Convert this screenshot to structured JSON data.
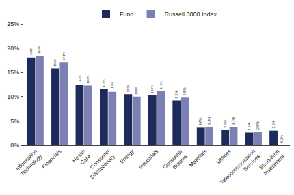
{
  "chart_data": {
    "type": "bar",
    "categories": [
      "Information Technology",
      "Financials",
      "Health Care",
      "Consumer Discretionary",
      "Energy",
      "Industrials",
      "Consumer Staples",
      "Materials",
      "Utilities",
      "Telecommunication Services",
      "Short-term Investment"
    ],
    "series": [
      {
        "name": "Fund",
        "color": "#1c2a5c",
        "values": [
          18.0,
          15.8,
          12.4,
          11.5,
          10.5,
          10.3,
          9.2,
          3.6,
          3.1,
          2.6,
          3.0
        ],
        "value_labels": [
          "18.0%",
          "15.8%",
          "12.4%",
          "11.5%",
          "10.5%",
          "10.3%",
          "9.2%",
          "3.6%",
          "3.1%",
          "2.6%",
          "3.0%"
        ]
      },
      {
        "name": "Russell 3000 Index",
        "color": "#7c80b2",
        "values": [
          18.4,
          17.1,
          12.3,
          11.0,
          10.0,
          11.1,
          9.8,
          3.8,
          3.7,
          2.8,
          0.0
        ],
        "value_labels": [
          "18.4%",
          "17.1%",
          "12.3%",
          "11.0%",
          "10.0%",
          "11.1%",
          "9.8%",
          "3.8%",
          "3.7%",
          "2.8%",
          "0.0%"
        ]
      }
    ],
    "ylim": [
      0,
      25
    ],
    "yticks": [
      {
        "value": 0,
        "label": "0%"
      },
      {
        "value": 5,
        "label": "5%"
      },
      {
        "value": 10,
        "label": "10%"
      },
      {
        "value": 15,
        "label": "15%"
      },
      {
        "value": 20,
        "label": "20%"
      },
      {
        "value": 25,
        "label": "25%"
      }
    ],
    "grid": false,
    "legend": "top",
    "data_labels": true
  }
}
